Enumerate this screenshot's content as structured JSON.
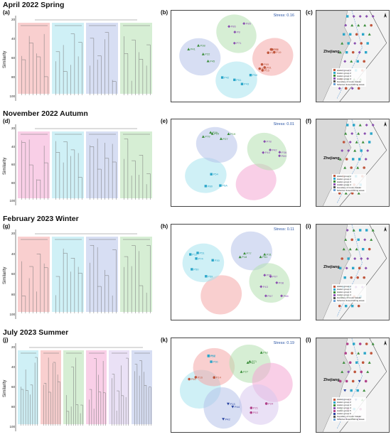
{
  "seasons": [
    {
      "title": "April 2022 Spring",
      "panels": [
        "(a)",
        "(b)",
        "(c)"
      ],
      "stress": "Stress: 0.16",
      "map_label": "Zhejiang",
      "legend": [
        "station group 1",
        "station group 2",
        "station group 3",
        "station group 4",
        "boundary of motor trawler",
        "fisheries closed fishing areas"
      ],
      "groups": [
        {
          "color": "#f4a8a8",
          "name": "station group 1"
        },
        {
          "color": "#a8e3ee",
          "name": "station group 2"
        },
        {
          "color": "#b7c2ea",
          "name": "station group 3"
        },
        {
          "color": "#b5e0b0",
          "name": "station group 4"
        }
      ],
      "nmds_points": [
        {
          "label": "P15",
          "g": 0
        },
        {
          "label": "P73",
          "g": 0
        },
        {
          "label": "P19",
          "g": 0
        },
        {
          "label": "P65",
          "g": 0
        },
        {
          "label": "P18",
          "g": 0
        },
        {
          "label": "P75",
          "g": 0
        },
        {
          "label": "P81",
          "g": 0
        },
        {
          "label": "P80",
          "g": 0
        },
        {
          "label": "P22",
          "g": 2
        },
        {
          "label": "P45",
          "g": 2
        },
        {
          "label": "P41",
          "g": 2
        },
        {
          "label": "P38",
          "g": 2
        },
        {
          "label": "P42",
          "g": 1
        },
        {
          "label": "P43",
          "g": 1
        },
        {
          "label": "P50",
          "g": 1
        },
        {
          "label": "P51",
          "g": 1
        },
        {
          "label": "P71",
          "g": 3
        },
        {
          "label": "P8",
          "g": 3
        },
        {
          "label": "P86",
          "g": 3
        },
        {
          "label": "P85",
          "g": 3
        }
      ]
    },
    {
      "title": "November 2022 Autumn",
      "panels": [
        "(d)",
        "(e)",
        "(f)"
      ],
      "stress": "Stress: 0.01",
      "map_label": "Zhejiang",
      "legend": [
        "station group 1",
        "station group 2",
        "station group 3",
        "station group 4",
        "boundary of motor trawler",
        "fisheries closed fishing areas"
      ],
      "groups": [
        {
          "color": "#f4a8d4",
          "name": "station group 1"
        },
        {
          "color": "#a8e3ee",
          "name": "station group 2"
        },
        {
          "color": "#b7c2ea",
          "name": "station group 3"
        },
        {
          "color": "#b5e0b0",
          "name": "station group 4"
        }
      ],
      "nmds_points": [
        {
          "label": "P27",
          "g": 2
        },
        {
          "label": "P29",
          "g": 2
        },
        {
          "label": "P19",
          "g": 2
        },
        {
          "label": "P79",
          "g": 2
        },
        {
          "label": "P39",
          "g": 2
        },
        {
          "label": "P42",
          "g": 3
        },
        {
          "label": "P44",
          "g": 3
        },
        {
          "label": "P36",
          "g": 3
        },
        {
          "label": "P78",
          "g": 3
        },
        {
          "label": "P89",
          "g": 3
        },
        {
          "label": "P80",
          "g": 1
        },
        {
          "label": "P54",
          "g": 1
        },
        {
          "label": "P5A",
          "g": 1
        }
      ]
    },
    {
      "title": "February 2023 Winter",
      "panels": [
        "(g)",
        "(h)",
        "(i)"
      ],
      "stress": "Stress: 0.11",
      "map_label": "Zhejiang",
      "legend": [
        "station group 1",
        "station group 2",
        "station group 3",
        "station group 4",
        "boundary of motor trawler",
        "fisheries closed fishing areas"
      ],
      "groups": [
        {
          "color": "#f4a8a8",
          "name": "station group 1"
        },
        {
          "color": "#a8e3ee",
          "name": "station group 2"
        },
        {
          "color": "#b7c2ea",
          "name": "station group 3"
        },
        {
          "color": "#b5e0b0",
          "name": "station group 4"
        }
      ],
      "nmds_points": [
        {
          "label": "P07",
          "g": 3
        },
        {
          "label": "P65",
          "g": 3
        },
        {
          "label": "P08",
          "g": 3
        },
        {
          "label": "P43",
          "g": 3
        },
        {
          "label": "P66",
          "g": 3
        },
        {
          "label": "P67",
          "g": 3
        },
        {
          "label": "P30",
          "g": 1
        },
        {
          "label": "P12",
          "g": 1
        },
        {
          "label": "P50",
          "g": 1
        },
        {
          "label": "P59",
          "g": 1
        },
        {
          "label": "P74",
          "g": 1
        },
        {
          "label": "P51",
          "g": 1
        },
        {
          "label": "P31",
          "g": 2
        },
        {
          "label": "P61",
          "g": 2
        },
        {
          "label": "P77",
          "g": 2
        },
        {
          "label": "P18",
          "g": 2
        }
      ]
    },
    {
      "title": "July 2023 Summer",
      "panels": [
        "(j)",
        "(k)",
        "(l)"
      ],
      "stress": "Stress: 0.19",
      "map_label": "Zhejiang",
      "legend": [
        "station group 1",
        "station group 2",
        "station group 3",
        "station group 4",
        "station group 5",
        "station group 6",
        "boundary of motor trawler",
        "fisheries closed fishing areas"
      ],
      "groups": [
        {
          "color": "#a8e3ee",
          "name": "station group 1"
        },
        {
          "color": "#f4a8a8",
          "name": "station group 2"
        },
        {
          "color": "#b5e0b0",
          "name": "station group 3"
        },
        {
          "color": "#f4a8d4",
          "name": "station group 4"
        },
        {
          "color": "#d9c8ee",
          "name": "station group 5"
        },
        {
          "color": "#b7c2ea",
          "name": "station group 6"
        }
      ],
      "nmds_points": [
        {
          "label": "P14",
          "g": 0
        },
        {
          "label": "P16",
          "g": 0
        },
        {
          "label": "P50",
          "g": 0
        },
        {
          "label": "P58",
          "g": 1
        },
        {
          "label": "P57",
          "g": 1
        },
        {
          "label": "P56",
          "g": 1
        },
        {
          "label": "P44",
          "g": 5
        },
        {
          "label": "P42",
          "g": 5
        },
        {
          "label": "P13",
          "g": 5
        },
        {
          "label": "P24",
          "g": 4
        },
        {
          "label": "P53",
          "g": 4
        },
        {
          "label": "P21",
          "g": 4
        },
        {
          "label": "P63",
          "g": 2
        },
        {
          "label": "P62",
          "g": 2
        },
        {
          "label": "P71",
          "g": 2
        },
        {
          "label": "P27",
          "g": 2
        }
      ]
    }
  ],
  "axis": {
    "ylabel": "Similarity",
    "ticks": [
      "20",
      "40",
      "60",
      "80",
      "100"
    ]
  }
}
